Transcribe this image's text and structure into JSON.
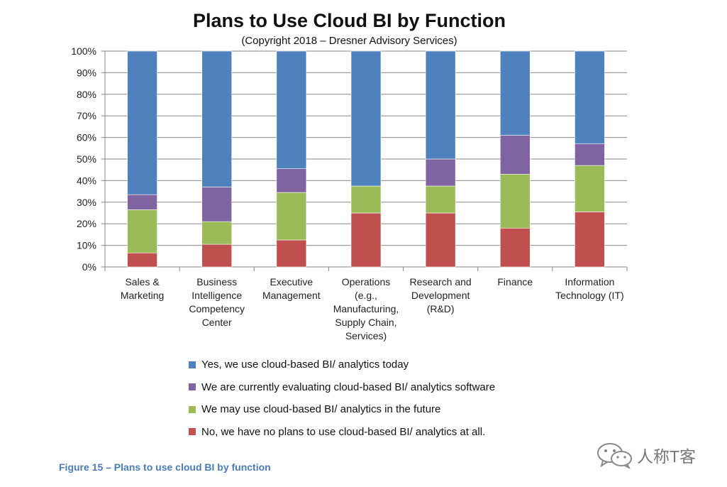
{
  "chart_data": {
    "type": "bar",
    "stacked": true,
    "title": "Plans to Use Cloud BI by Function",
    "subtitle": "(Copyright 2018 – Dresner Advisory Services)",
    "categories": [
      [
        "Sales &",
        "Marketing"
      ],
      [
        "Business",
        "Intelligence",
        "Competency",
        "Center"
      ],
      [
        "Executive",
        "Management"
      ],
      [
        "Operations",
        "(e.g.,",
        "Manufacturing,",
        "Supply Chain,",
        "Services)"
      ],
      [
        "Research and",
        "Development",
        "(R&D)"
      ],
      [
        "Finance"
      ],
      [
        "Information",
        "Technology (IT)"
      ]
    ],
    "y_ticks": [
      "0%",
      "10%",
      "20%",
      "30%",
      "40%",
      "50%",
      "60%",
      "70%",
      "80%",
      "90%",
      "100%"
    ],
    "ylim": [
      0,
      100
    ],
    "grid": true,
    "legend_position": "bottom",
    "series": [
      {
        "name": "No, we have no plans to use cloud-based BI/ analytics at all.",
        "color": "#c0504d",
        "values": [
          6.5,
          10.5,
          12.5,
          25,
          25,
          18,
          25.5
        ]
      },
      {
        "name": "We may use cloud-based BI/ analytics in the future",
        "color": "#9bbb59",
        "values": [
          20,
          10.5,
          22,
          12.5,
          12.5,
          25,
          21.5
        ]
      },
      {
        "name": "We are currently evaluating cloud-based BI/ analytics software",
        "color": "#8064a2",
        "values": [
          7,
          16,
          11,
          0,
          12.5,
          18,
          10
        ]
      },
      {
        "name": "Yes, we use cloud-based BI/ analytics  today",
        "color": "#4f81bd",
        "values": [
          66.5,
          63,
          54.5,
          62.5,
          50,
          39,
          43
        ]
      }
    ],
    "legend_order": [
      3,
      2,
      1,
      0
    ]
  },
  "caption": "Figure 15 – Plans to use cloud BI by function",
  "watermark": {
    "text": "人称T客",
    "icon": "wechat-logo"
  },
  "colors": {
    "gridline": "#888888",
    "caption": "#4a7bb7"
  }
}
